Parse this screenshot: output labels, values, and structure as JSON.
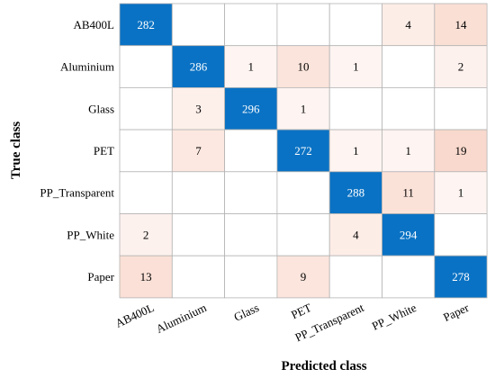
{
  "chart_data": {
    "type": "heatmap",
    "xlabel": "Predicted class",
    "ylabel": "True class",
    "rows": [
      "AB400L",
      "Aluminium",
      "Glass",
      "PET",
      "PP_Transparent",
      "PP_White",
      "Paper"
    ],
    "columns": [
      "AB400L",
      "Aluminium",
      "Glass",
      "PET",
      "PP_Transparent",
      "PP_White",
      "Paper"
    ],
    "values": [
      [
        282,
        null,
        null,
        null,
        null,
        4,
        14
      ],
      [
        null,
        286,
        1,
        10,
        1,
        null,
        2
      ],
      [
        null,
        3,
        296,
        1,
        null,
        null,
        null
      ],
      [
        null,
        7,
        null,
        272,
        1,
        1,
        19
      ],
      [
        null,
        null,
        null,
        null,
        288,
        11,
        1
      ],
      [
        2,
        null,
        null,
        null,
        4,
        294,
        null
      ],
      [
        13,
        null,
        null,
        9,
        null,
        null,
        278
      ]
    ],
    "colors": {
      "diagonal": "#0a72c4",
      "off_diagonal_max": "#f9d9cd",
      "off_diagonal_min": "#fffaf8",
      "empty": "#ffffff",
      "grid": "#b4b4b4",
      "diagonal_text": "#ffffff",
      "text": "#000000"
    }
  }
}
